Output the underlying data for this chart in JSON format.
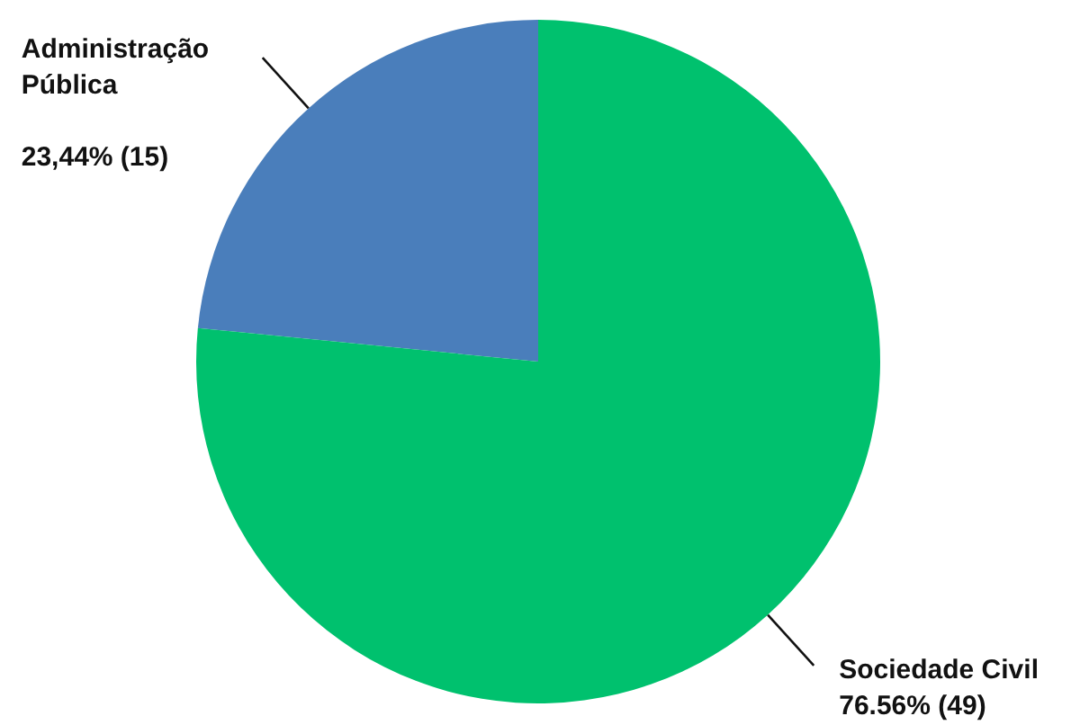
{
  "chart_data": {
    "type": "pie",
    "categories": [
      "Administração Pública",
      "Sociedade Civil"
    ],
    "values": [
      15,
      49
    ],
    "colors": [
      "#4a7ebb",
      "#00c16e"
    ],
    "value_labels": [
      "23,44% (15)",
      "76.56% (49)"
    ]
  }
}
